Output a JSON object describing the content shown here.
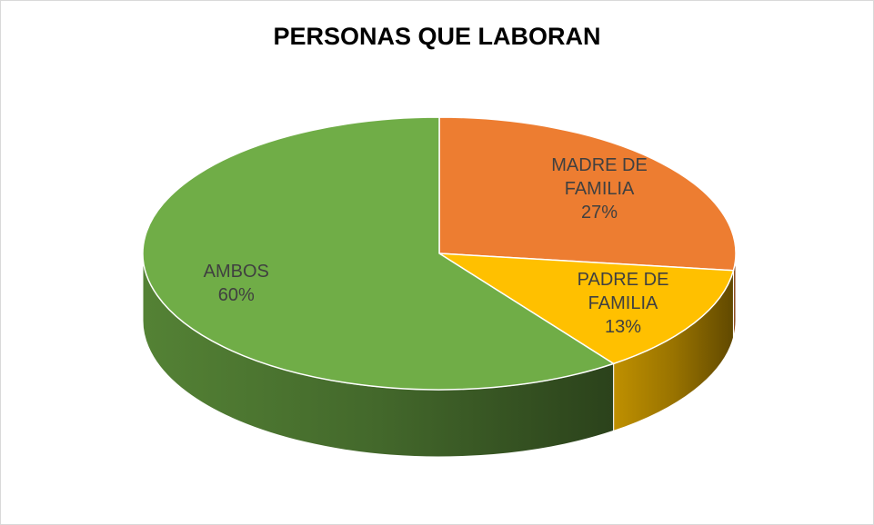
{
  "chart_data": {
    "type": "pie3d",
    "title": "PERSONAS QUE LABORAN",
    "categories": [
      "MADRE DE FAMILIA",
      "PADRE DE FAMILIA",
      "AMBOS"
    ],
    "values": [
      27,
      13,
      60
    ],
    "value_labels": [
      "27%",
      "13%",
      "60%"
    ],
    "colors": [
      "#ed7d31",
      "#ffc000",
      "#70ad47"
    ]
  }
}
